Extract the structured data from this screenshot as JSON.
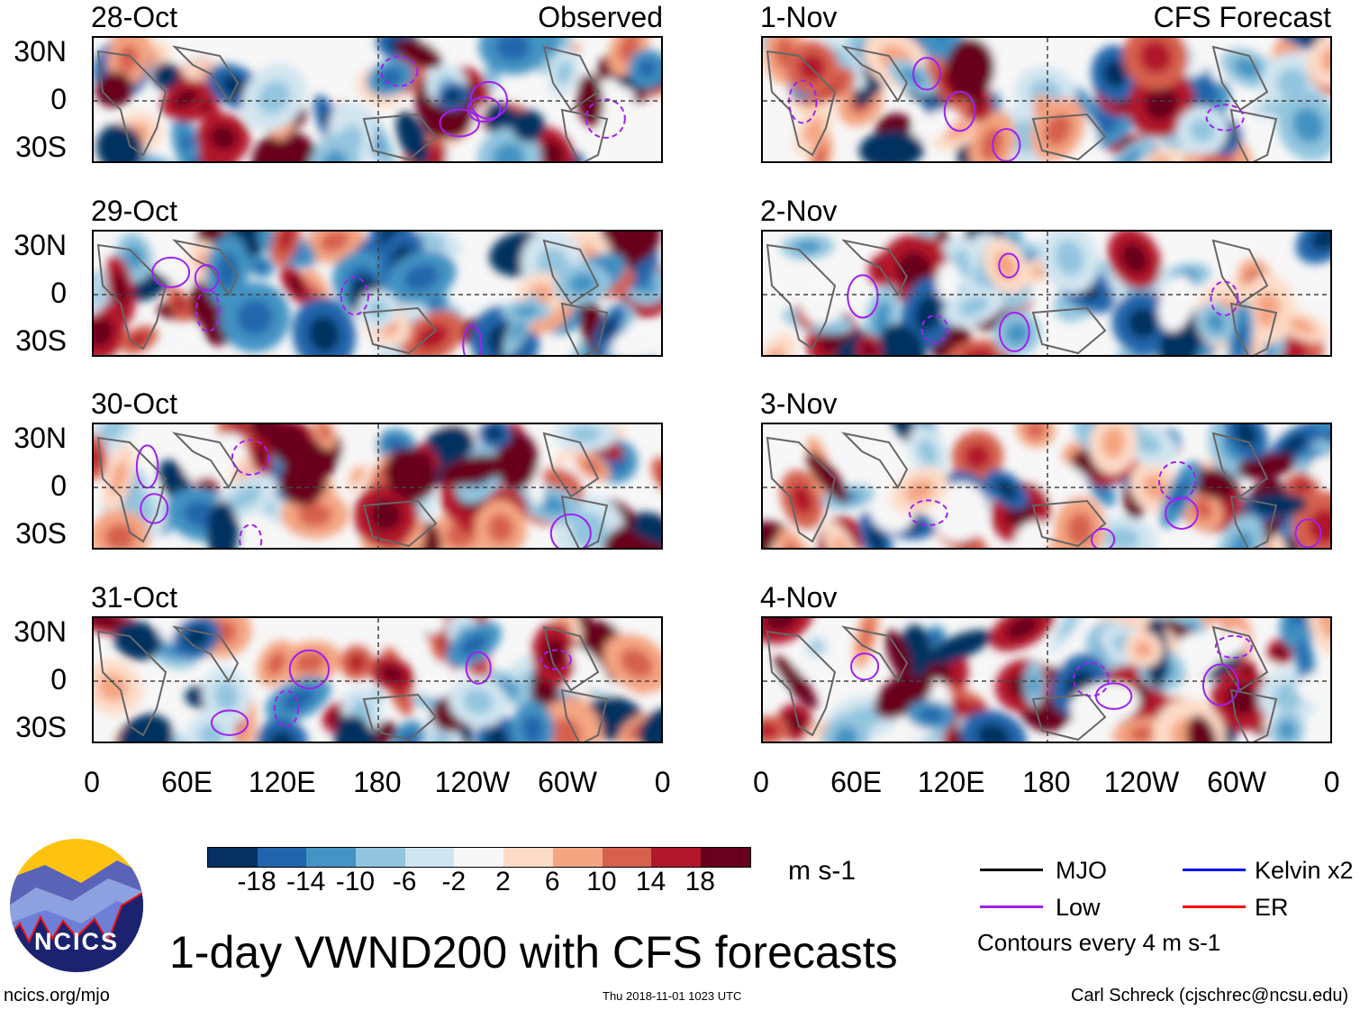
{
  "header": {
    "observed_label": "Observed",
    "forecast_label": "CFS Forecast"
  },
  "panels_left": [
    "28-Oct",
    "29-Oct",
    "30-Oct",
    "31-Oct"
  ],
  "panels_right": [
    "1-Nov",
    "2-Nov",
    "3-Nov",
    "4-Nov"
  ],
  "lat_labels": [
    "30N",
    "0",
    "30S"
  ],
  "lon_labels": [
    "0",
    "60E",
    "120E",
    "180",
    "120W",
    "60W",
    "0"
  ],
  "colorbar": {
    "colors": [
      "#053061",
      "#2166ac",
      "#4393c3",
      "#92c5de",
      "#d1e5f0",
      "#f7f7f7",
      "#fddbc7",
      "#f4a582",
      "#d6604d",
      "#b2182b",
      "#67001f"
    ],
    "labels": [
      "-18",
      "-14",
      "-10",
      "-6",
      "-2",
      "2",
      "6",
      "10",
      "14",
      "18"
    ],
    "units": "m s-1"
  },
  "legend": {
    "items": [
      {
        "label": "MJO",
        "color": "#000000"
      },
      {
        "label": "Kelvin x2",
        "color": "#0000ff"
      },
      {
        "label": "Low",
        "color": "#a020f0"
      },
      {
        "label": "ER",
        "color": "#ff0000"
      }
    ],
    "contours_note": "Contours every 4 m s-1"
  },
  "title": "1-day VWND200 with CFS forecasts",
  "logo_text": "NCICS",
  "footer": {
    "url": "ncics.org/mjo",
    "timestamp": "Thu 2018-11-01 1023 UTC",
    "author": "Carl Schreck (cjschrec@ncsu.edu)"
  }
}
